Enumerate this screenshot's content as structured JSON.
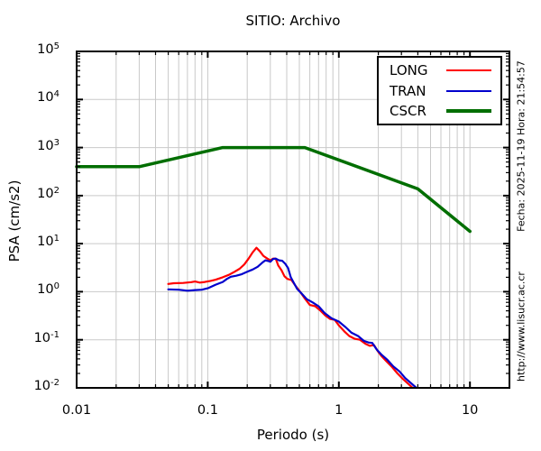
{
  "window": {
    "background": "#ffffff"
  },
  "side_labels": {
    "datetime": "Fecha: 2025-11-19 Hora: 21:54:57",
    "website": "http://www.lisucr.ac.cr"
  },
  "chart_data": {
    "type": "line",
    "title": "SITIO: Archivo",
    "xlabel": "Periodo (s)",
    "ylabel": "PSA (cm/s2)",
    "x_scale": "log",
    "y_scale": "log",
    "xlim": [
      0.01,
      20
    ],
    "ylim": [
      0.01,
      100000
    ],
    "grid": {
      "show": true,
      "color": "#c9c9c9",
      "x_gridlines": "major+minor",
      "y_gridlines": "major"
    },
    "axis_color": "#000000",
    "x_ticks": [
      {
        "value": 0.01,
        "label": "0.01"
      },
      {
        "value": 0.1,
        "label": "0.1"
      },
      {
        "value": 1,
        "label": "1"
      },
      {
        "value": 10,
        "label": "10"
      }
    ],
    "y_ticks": [
      {
        "value": 100000,
        "exp": "5"
      },
      {
        "value": 10000,
        "exp": "4"
      },
      {
        "value": 1000,
        "exp": "3"
      },
      {
        "value": 100,
        "exp": "2"
      },
      {
        "value": 10,
        "exp": "1"
      },
      {
        "value": 1,
        "exp": "0"
      },
      {
        "value": 0.1,
        "exp": "-1"
      },
      {
        "value": 0.01,
        "exp": "-2"
      }
    ],
    "legend": {
      "position": "top-right",
      "entries": [
        {
          "label": "LONG",
          "color": "#ff0000",
          "line_width": 2.5
        },
        {
          "label": "TRAN",
          "color": "#0000cd",
          "line_width": 2.5
        },
        {
          "label": "CSCR",
          "color": "#006e00",
          "line_width": 4
        }
      ]
    },
    "series": [
      {
        "name": "LONG",
        "color": "#ff0000",
        "line_width": 2.2,
        "points": [
          [
            0.05,
            1.45
          ],
          [
            0.055,
            1.5
          ],
          [
            0.065,
            1.52
          ],
          [
            0.075,
            1.58
          ],
          [
            0.08,
            1.63
          ],
          [
            0.087,
            1.55
          ],
          [
            0.095,
            1.6
          ],
          [
            0.105,
            1.68
          ],
          [
            0.115,
            1.78
          ],
          [
            0.13,
            2.0
          ],
          [
            0.145,
            2.25
          ],
          [
            0.16,
            2.6
          ],
          [
            0.175,
            3.0
          ],
          [
            0.19,
            3.7
          ],
          [
            0.205,
            4.9
          ],
          [
            0.22,
            6.6
          ],
          [
            0.235,
            8.2
          ],
          [
            0.25,
            6.9
          ],
          [
            0.265,
            5.6
          ],
          [
            0.285,
            4.9
          ],
          [
            0.3,
            4.5
          ],
          [
            0.315,
            4.9
          ],
          [
            0.33,
            4.9
          ],
          [
            0.345,
            3.5
          ],
          [
            0.365,
            2.8
          ],
          [
            0.385,
            2.1
          ],
          [
            0.405,
            1.85
          ],
          [
            0.435,
            1.75
          ],
          [
            0.465,
            1.35
          ],
          [
            0.5,
            1.05
          ],
          [
            0.55,
            0.72
          ],
          [
            0.6,
            0.53
          ],
          [
            0.66,
            0.5
          ],
          [
            0.72,
            0.41
          ],
          [
            0.79,
            0.32
          ],
          [
            0.86,
            0.27
          ],
          [
            0.93,
            0.26
          ],
          [
            1.0,
            0.2
          ],
          [
            1.1,
            0.15
          ],
          [
            1.2,
            0.12
          ],
          [
            1.32,
            0.105
          ],
          [
            1.45,
            0.1
          ],
          [
            1.6,
            0.082
          ],
          [
            1.72,
            0.075
          ],
          [
            1.85,
            0.078
          ],
          [
            1.98,
            0.058
          ],
          [
            2.1,
            0.047
          ],
          [
            2.3,
            0.036
          ],
          [
            2.55,
            0.027
          ],
          [
            2.8,
            0.02
          ],
          [
            3.1,
            0.015
          ],
          [
            3.4,
            0.012
          ],
          [
            3.65,
            0.01
          ]
        ]
      },
      {
        "name": "TRAN",
        "color": "#0000cd",
        "line_width": 2.2,
        "points": [
          [
            0.05,
            1.12
          ],
          [
            0.06,
            1.1
          ],
          [
            0.07,
            1.05
          ],
          [
            0.08,
            1.08
          ],
          [
            0.09,
            1.1
          ],
          [
            0.1,
            1.18
          ],
          [
            0.115,
            1.4
          ],
          [
            0.13,
            1.6
          ],
          [
            0.14,
            1.85
          ],
          [
            0.15,
            2.05
          ],
          [
            0.165,
            2.15
          ],
          [
            0.18,
            2.3
          ],
          [
            0.2,
            2.6
          ],
          [
            0.22,
            2.9
          ],
          [
            0.24,
            3.3
          ],
          [
            0.26,
            4.0
          ],
          [
            0.275,
            4.5
          ],
          [
            0.29,
            4.35
          ],
          [
            0.3,
            4.2
          ],
          [
            0.315,
            4.8
          ],
          [
            0.33,
            4.9
          ],
          [
            0.35,
            4.5
          ],
          [
            0.37,
            4.4
          ],
          [
            0.39,
            3.8
          ],
          [
            0.41,
            3.1
          ],
          [
            0.43,
            2.0
          ],
          [
            0.455,
            1.5
          ],
          [
            0.48,
            1.15
          ],
          [
            0.52,
            0.92
          ],
          [
            0.57,
            0.7
          ],
          [
            0.63,
            0.6
          ],
          [
            0.7,
            0.5
          ],
          [
            0.78,
            0.36
          ],
          [
            0.88,
            0.28
          ],
          [
            1.0,
            0.24
          ],
          [
            1.12,
            0.185
          ],
          [
            1.25,
            0.14
          ],
          [
            1.4,
            0.12
          ],
          [
            1.55,
            0.095
          ],
          [
            1.68,
            0.088
          ],
          [
            1.8,
            0.086
          ],
          [
            1.95,
            0.062
          ],
          [
            2.1,
            0.05
          ],
          [
            2.35,
            0.038
          ],
          [
            2.6,
            0.028
          ],
          [
            2.9,
            0.022
          ],
          [
            3.2,
            0.016
          ],
          [
            3.5,
            0.013
          ],
          [
            3.9,
            0.01
          ]
        ]
      },
      {
        "name": "CSCR",
        "color": "#006e00",
        "line_width": 3.5,
        "points": [
          [
            0.01,
            400
          ],
          [
            0.03,
            400
          ],
          [
            0.13,
            1000
          ],
          [
            0.55,
            1000
          ],
          [
            4.0,
            138
          ],
          [
            10.0,
            18
          ]
        ]
      }
    ]
  }
}
